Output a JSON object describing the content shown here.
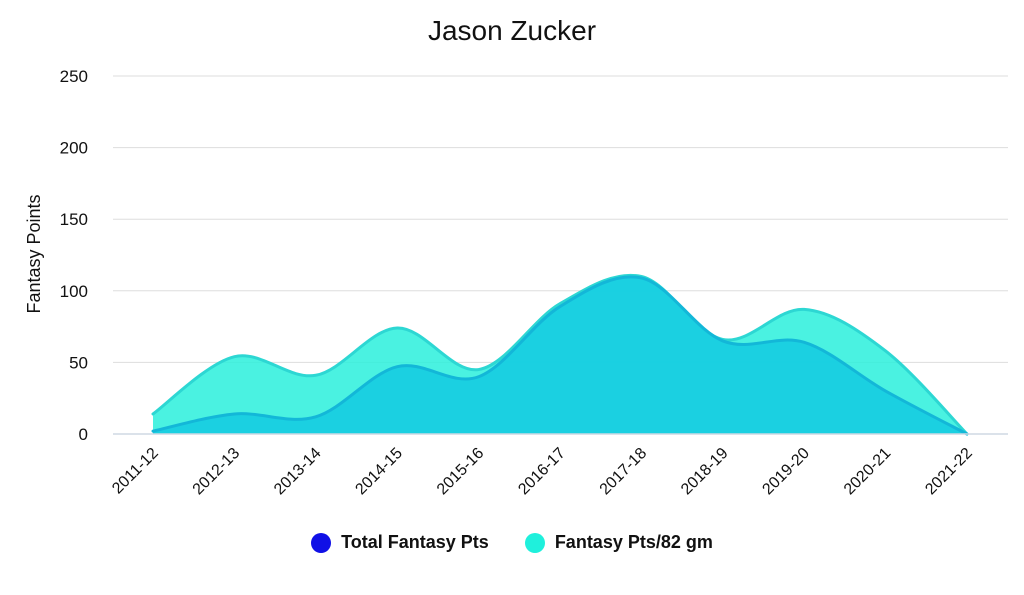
{
  "chart_data": {
    "type": "area",
    "title": "Jason Zucker",
    "xlabel": "",
    "ylabel": "Fantasy Points",
    "ylim": [
      0,
      250
    ],
    "yticks": [
      0,
      50,
      100,
      150,
      200,
      250
    ],
    "categories": [
      "2011-12",
      "2012-13",
      "2013-14",
      "2014-15",
      "2015-16",
      "2016-17",
      "2017-18",
      "2018-19",
      "2019-20",
      "2020-21",
      "2021-22"
    ],
    "series": [
      {
        "name": "Fantasy Pts/82 gm",
        "values": [
          14,
          54,
          41,
          74,
          45,
          91,
          110,
          66,
          87,
          58,
          0
        ],
        "color": "#2af0dc"
      },
      {
        "name": "Total Fantasy Pts",
        "values": [
          2,
          14,
          12,
          47,
          40,
          89,
          109,
          65,
          64,
          30,
          0
        ],
        "color": "#18cde0"
      }
    ],
    "legend": [
      {
        "name": "Total Fantasy Pts",
        "color": "#1010e6"
      },
      {
        "name": "Fantasy Pts/82 gm",
        "color": "#1ff0dc"
      }
    ],
    "grid": true,
    "legend_position": "bottom"
  }
}
